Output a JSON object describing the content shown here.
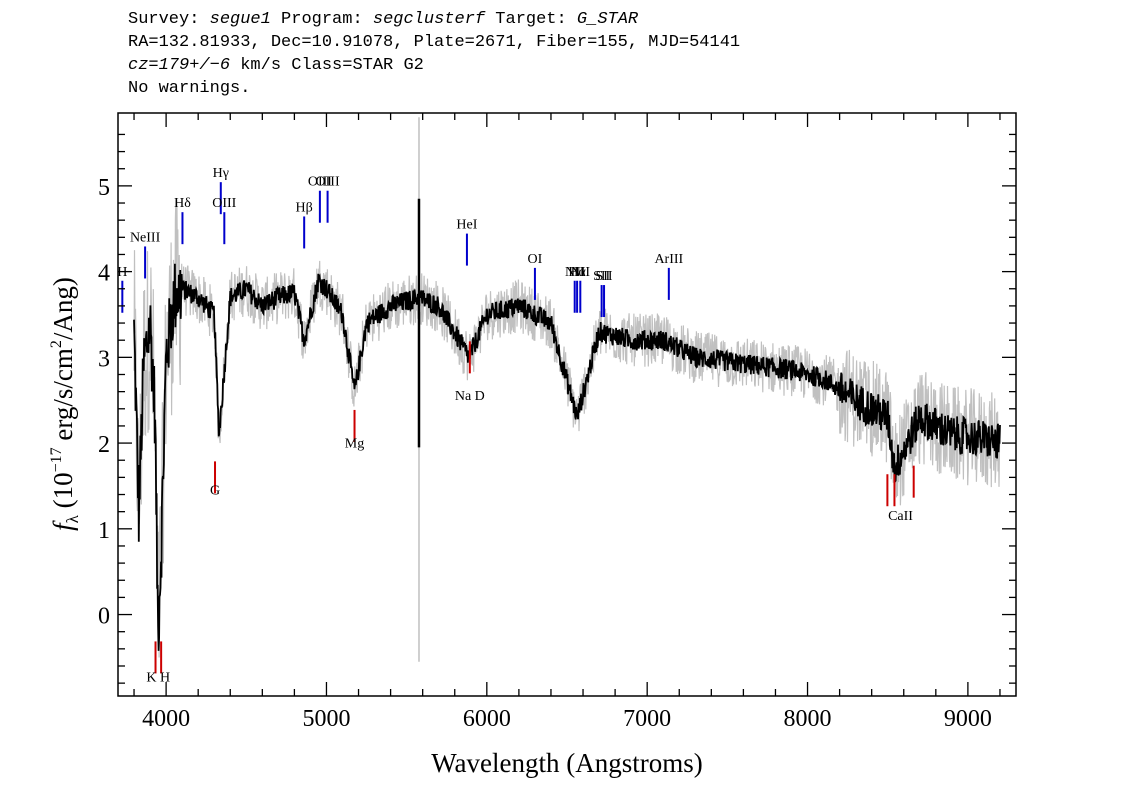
{
  "header": {
    "survey_label": "Survey: ",
    "survey": "segue1",
    "program_label": " Program: ",
    "program": "segclusterf",
    "target_label": " Target: ",
    "target": "G_STAR",
    "line2": "RA=132.81933, Dec=10.91078, Plate=2671, Fiber=155, MJD=54141",
    "cz": "cz=179+/−6",
    "cz_rest": " km/s Class=STAR G2",
    "line4": "No warnings."
  },
  "chart_data": {
    "type": "line",
    "xlabel": "Wavelength (Angstroms)",
    "ylabel_f": "f",
    "ylabel_sub": "λ",
    "ylabel_a": " (10",
    "ylabel_exp": "−17",
    "ylabel_b": " erg/s/cm",
    "ylabel_exp2": "2",
    "ylabel_c": "/Ang)",
    "xlim": [
      3700,
      9300
    ],
    "ylim": [
      -0.95,
      5.85
    ],
    "x_ticks": [
      4000,
      5000,
      6000,
      7000,
      8000,
      9000
    ],
    "x_tick_labels": [
      "4000",
      "5000",
      "6000",
      "7000",
      "8000",
      "9000"
    ],
    "y_ticks": [
      0,
      1,
      2,
      3,
      4,
      5
    ],
    "y_tick_labels": [
      "0",
      "1",
      "2",
      "3",
      "4",
      "5"
    ],
    "grid": false,
    "series": [
      {
        "color": "#000000",
        "x": [
          3800,
          3830,
          3860,
          3900,
          3930,
          3950,
          3970,
          4000,
          4050,
          4100,
          4200,
          4300,
          4330,
          4400,
          4500,
          4600,
          4700,
          4800,
          4861,
          4950,
          5000,
          5100,
          5175,
          5250,
          5400,
          5577,
          5700,
          5890,
          6000,
          6200,
          6400,
          6563,
          6700,
          6900,
          7100,
          7300,
          7500,
          7700,
          7900,
          8100,
          8300,
          8500,
          8542,
          8700,
          8900,
          9100,
          9200
        ],
        "y": [
          3.3,
          1.2,
          2.9,
          3.4,
          2.4,
          -0.2,
          0.8,
          3.0,
          3.7,
          3.8,
          3.7,
          3.5,
          2.1,
          3.7,
          3.8,
          3.6,
          3.7,
          3.75,
          3.2,
          3.9,
          3.8,
          3.5,
          2.6,
          3.4,
          3.6,
          3.7,
          3.6,
          3.0,
          3.5,
          3.6,
          3.4,
          2.3,
          3.3,
          3.2,
          3.2,
          3.0,
          2.95,
          2.9,
          2.85,
          2.75,
          2.5,
          2.3,
          1.7,
          2.3,
          2.1,
          2.05,
          2.0
        ]
      }
    ],
    "emission_lines": [
      {
        "label": "H",
        "x": 3727,
        "y": 3.8
      },
      {
        "label": "NeIII",
        "x": 3869,
        "y": 4.2
      },
      {
        "label": "Hδ",
        "x": 4102,
        "y": 4.6
      },
      {
        "label": "Hγ",
        "x": 4341,
        "y": 4.95
      },
      {
        "label": "OIII",
        "x": 4363,
        "y": 4.6
      },
      {
        "label": "Hβ",
        "x": 4861,
        "y": 4.55
      },
      {
        "label": "OIII",
        "x": 4959,
        "y": 4.85
      },
      {
        "label": "OIII",
        "x": 5007,
        "y": 4.85
      },
      {
        "label": "HeI",
        "x": 5876,
        "y": 4.35
      },
      {
        "label": "OI",
        "x": 6300,
        "y": 3.95
      },
      {
        "label": "NII",
        "x": 6548,
        "y": 3.8
      },
      {
        "label": "Hα",
        "x": 6563,
        "y": 3.8
      },
      {
        "label": "NII",
        "x": 6583,
        "y": 3.8
      },
      {
        "label": "SII",
        "x": 6716,
        "y": 3.75
      },
      {
        "label": "SII",
        "x": 6731,
        "y": 3.75
      },
      {
        "label": "ArIII",
        "x": 7135,
        "y": 3.95
      }
    ],
    "absorption_lines": [
      {
        "label": "K",
        "x": 3934,
        "y": -0.5
      },
      {
        "label": "H",
        "x": 3969,
        "y": -0.5
      },
      {
        "label": "G",
        "x": 4305,
        "y": 1.6
      },
      {
        "label": "Mg",
        "x": 5175,
        "y": 2.2
      },
      {
        "label": "Na D",
        "x": 5894,
        "y": 3.0
      },
      {
        "label": "CaII",
        "x": 8498,
        "y": 1.45
      },
      {
        "label": "CaII",
        "x": 8542,
        "y": 1.45
      },
      {
        "label": "CaII",
        "x": 8662,
        "y": 1.55
      }
    ],
    "absorption_group_labels": [
      {
        "label": "K H",
        "x": 3951,
        "y": -0.78
      },
      {
        "label": "G",
        "x": 4305,
        "y": 1.4
      },
      {
        "label": "Mg",
        "x": 5175,
        "y": 1.95
      },
      {
        "label": "Na D",
        "x": 5894,
        "y": 2.5
      },
      {
        "label": "CaII",
        "x": 8580,
        "y": 1.1
      }
    ],
    "colors": {
      "flux": "#000000",
      "error": "#c0c0c0",
      "emission": "#0000cc",
      "absorption": "#cc0000"
    }
  }
}
